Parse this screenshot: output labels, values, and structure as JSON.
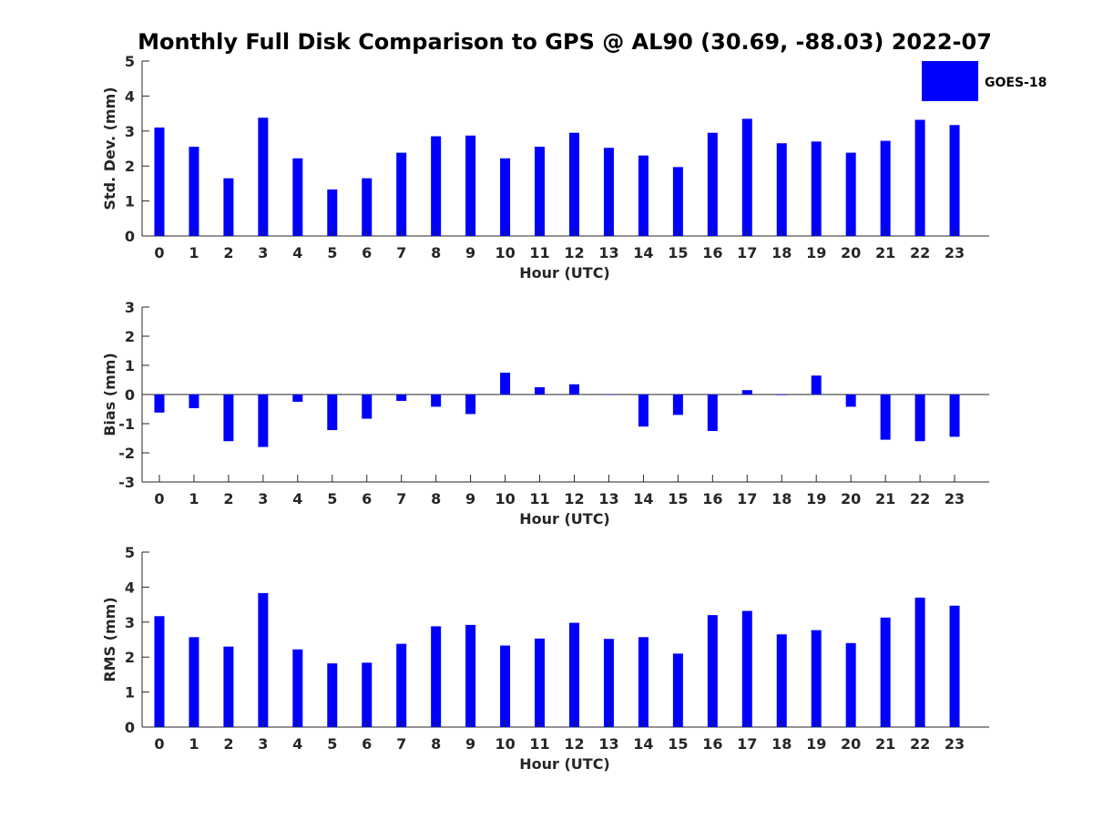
{
  "title": "Monthly Full Disk Comparison to GPS @ AL90 (30.69, -88.03) 2022-07",
  "legend": {
    "label": "GOES-18",
    "color": "#0000ff"
  },
  "colors": {
    "bar": "#0000ff",
    "axis": "#262626",
    "background": "#ffffff"
  },
  "chart_data": [
    {
      "type": "bar",
      "id": "std",
      "title": "",
      "xlabel": "Hour (UTC)",
      "ylabel": "Std. Dev. (mm)",
      "ylim": [
        0,
        5
      ],
      "yticks": [
        "0",
        "1",
        "2",
        "3",
        "4",
        "5"
      ],
      "categories": [
        "0",
        "1",
        "2",
        "3",
        "4",
        "5",
        "6",
        "7",
        "8",
        "9",
        "10",
        "11",
        "12",
        "13",
        "14",
        "15",
        "16",
        "17",
        "18",
        "19",
        "20",
        "21",
        "22",
        "23"
      ],
      "series": [
        {
          "name": "GOES-18",
          "values": [
            3.1,
            2.55,
            1.65,
            3.38,
            2.22,
            1.33,
            1.65,
            2.38,
            2.85,
            2.87,
            2.22,
            2.55,
            2.95,
            2.52,
            2.3,
            1.97,
            2.95,
            3.35,
            2.65,
            2.7,
            2.38,
            2.72,
            3.32,
            3.17
          ]
        }
      ]
    },
    {
      "type": "bar",
      "id": "bias",
      "title": "",
      "xlabel": "Hour (UTC)",
      "ylabel": "Bias (mm)",
      "ylim": [
        -3,
        3
      ],
      "yticks": [
        "-3",
        "-2",
        "-1",
        "0",
        "1",
        "2",
        "3"
      ],
      "categories": [
        "0",
        "1",
        "2",
        "3",
        "4",
        "5",
        "6",
        "7",
        "8",
        "9",
        "10",
        "11",
        "12",
        "13",
        "14",
        "15",
        "16",
        "17",
        "18",
        "19",
        "20",
        "21",
        "22",
        "23"
      ],
      "series": [
        {
          "name": "GOES-18",
          "values": [
            -0.62,
            -0.47,
            -1.6,
            -1.8,
            -0.25,
            -1.22,
            -0.83,
            -0.22,
            -0.42,
            -0.67,
            0.75,
            0.25,
            0.35,
            0.0,
            -1.1,
            -0.7,
            -1.25,
            0.15,
            -0.02,
            0.65,
            -0.42,
            -1.55,
            -1.6,
            -1.45
          ]
        }
      ]
    },
    {
      "type": "bar",
      "id": "rms",
      "title": "",
      "xlabel": "Hour (UTC)",
      "ylabel": "RMS (mm)",
      "ylim": [
        0,
        5
      ],
      "yticks": [
        "0",
        "1",
        "2",
        "3",
        "4",
        "5"
      ],
      "categories": [
        "0",
        "1",
        "2",
        "3",
        "4",
        "5",
        "6",
        "7",
        "8",
        "9",
        "10",
        "11",
        "12",
        "13",
        "14",
        "15",
        "16",
        "17",
        "18",
        "19",
        "20",
        "21",
        "22",
        "23"
      ],
      "series": [
        {
          "name": "GOES-18",
          "values": [
            3.17,
            2.57,
            2.3,
            3.83,
            2.22,
            1.82,
            1.84,
            2.38,
            2.88,
            2.92,
            2.33,
            2.53,
            2.98,
            2.52,
            2.57,
            2.1,
            3.2,
            3.32,
            2.65,
            2.77,
            2.4,
            3.13,
            3.7,
            3.47
          ]
        }
      ]
    }
  ]
}
